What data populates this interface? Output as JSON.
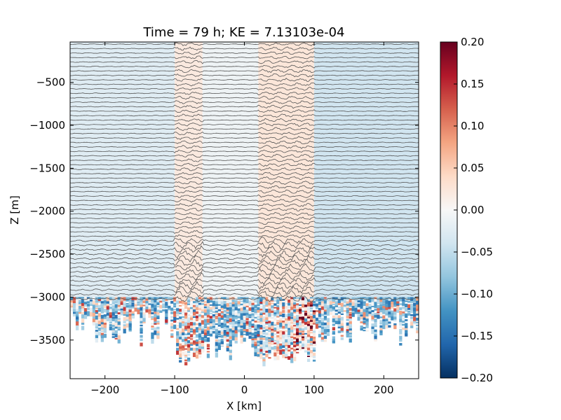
{
  "chart_data": {
    "type": "heatmap",
    "title": "Time = 79 h; KE = 7.13103e-04",
    "xlabel": "X [km]",
    "ylabel": "Z [m]",
    "xlim": [
      -250,
      250
    ],
    "ylim": [
      -3950,
      -30
    ],
    "x_ticks": [
      -200,
      -100,
      0,
      100,
      200
    ],
    "x_tick_labels": [
      "−200",
      "−100",
      "0",
      "100",
      "200"
    ],
    "y_ticks": [
      -3500,
      -3000,
      -2500,
      -2000,
      -1500,
      -1000,
      -500
    ],
    "y_tick_labels": [
      "−3500",
      "−3000",
      "−2500",
      "−2000",
      "−1500",
      "−1000",
      "−500"
    ],
    "colorbar": {
      "range": [
        -0.2,
        0.2
      ],
      "ticks": [
        0.2,
        0.15,
        0.1,
        0.05,
        0.0,
        -0.05,
        -0.1,
        -0.15,
        -0.2
      ],
      "tick_labels": [
        "0.20",
        "0.15",
        "0.10",
        "0.05",
        "0.00",
        "−0.05",
        "−0.10",
        "−0.15",
        "−0.20"
      ],
      "colormap": "RdBu_r",
      "stops": [
        "#053061",
        "#2166ac",
        "#4393c3",
        "#92c5de",
        "#d1e5f0",
        "#f7f7f7",
        "#fddbc7",
        "#f4a582",
        "#d6604d",
        "#b2182b",
        "#67001f"
      ]
    },
    "field": {
      "background_bands": [
        {
          "x": [
            -250,
            -100
          ],
          "value": -0.025
        },
        {
          "x": [
            -100,
            -60
          ],
          "value": 0.02
        },
        {
          "x": [
            -60,
            20
          ],
          "value": -0.01
        },
        {
          "x": [
            20,
            100
          ],
          "value": 0.025
        },
        {
          "x": [
            100,
            250
          ],
          "value": -0.04
        }
      ],
      "bottom_edge_m": -3050
    },
    "contours": {
      "color": "#555555",
      "count": 58,
      "z_top": -55,
      "z_bottom": -3020,
      "wavy_regions_km": [
        [
          -100,
          -60
        ],
        [
          20,
          100
        ]
      ]
    },
    "grid": false,
    "legend": "none"
  }
}
